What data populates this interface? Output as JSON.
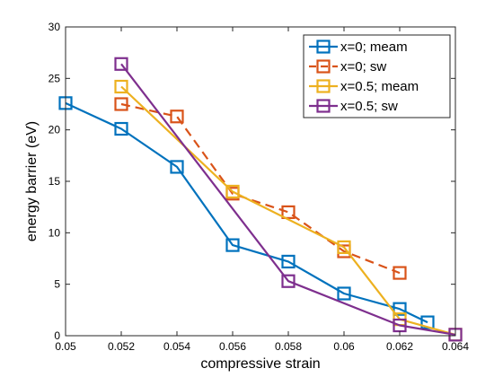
{
  "chart_data": {
    "type": "line",
    "xlabel": "compressive strain",
    "ylabel": "energy barrier (eV)",
    "xlim": [
      0.05,
      0.064
    ],
    "ylim": [
      0,
      30
    ],
    "x_ticks": [
      "0.05",
      "0.052",
      "0.054",
      "0.056",
      "0.058",
      "0.06",
      "0.062",
      "0.064"
    ],
    "y_ticks": [
      "0",
      "5",
      "10",
      "15",
      "20",
      "25",
      "30"
    ],
    "legend_position": "top-right",
    "grid": false,
    "series": [
      {
        "name": "x=0; meam",
        "color": "#0072BD",
        "line_style": "solid",
        "marker": "square",
        "x": [
          0.05,
          0.052,
          0.054,
          0.056,
          0.058,
          0.06,
          0.062,
          0.063
        ],
        "y": [
          22.6,
          20.1,
          16.4,
          8.8,
          7.2,
          4.1,
          2.6,
          1.3
        ]
      },
      {
        "name": "x=0; sw",
        "color": "#D95319",
        "line_style": "dashed",
        "marker": "square",
        "x": [
          0.052,
          0.054,
          0.056,
          0.058,
          0.06,
          0.062
        ],
        "y": [
          22.5,
          21.3,
          13.8,
          12.0,
          8.2,
          6.1
        ]
      },
      {
        "name": "x=0.5; meam",
        "color": "#EDB120",
        "line_style": "solid",
        "marker": "square",
        "x": [
          0.052,
          0.056,
          0.06,
          0.062,
          0.064
        ],
        "y": [
          24.2,
          14.0,
          8.6,
          1.6,
          0.1
        ]
      },
      {
        "name": "x=0.5; sw",
        "color": "#7E2F8E",
        "line_style": "solid",
        "marker": "square",
        "x": [
          0.052,
          0.058,
          0.062,
          0.064
        ],
        "y": [
          26.4,
          5.3,
          1.0,
          0.1
        ]
      }
    ]
  }
}
